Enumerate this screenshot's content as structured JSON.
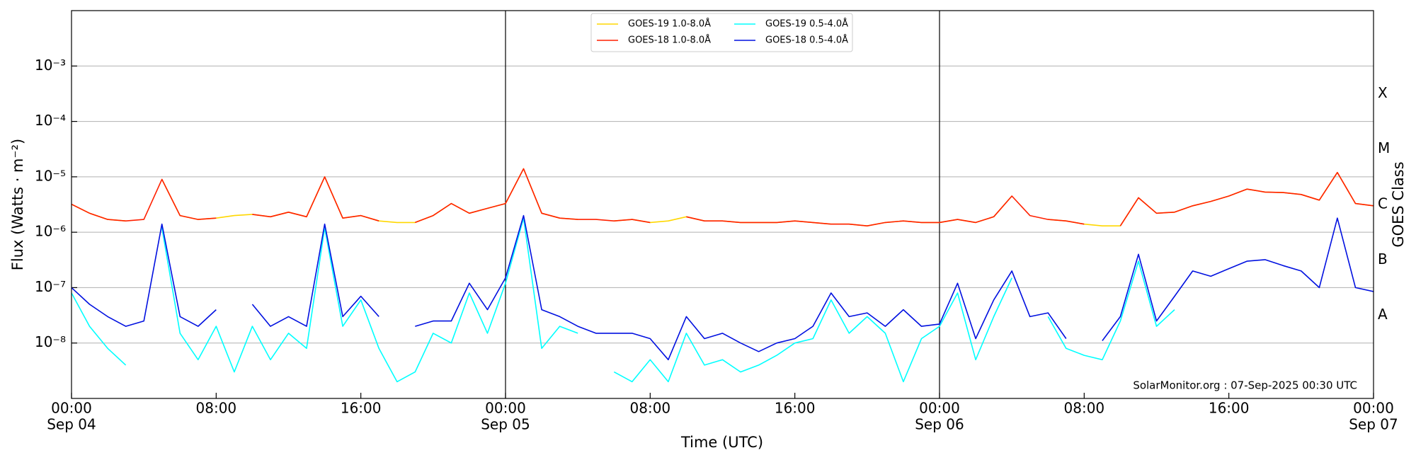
{
  "chart_data": {
    "type": "line",
    "y_label": "Flux (Watts · m⁻²)",
    "x_label": "Time (UTC)",
    "y2_label": "GOES Class",
    "annotation": "SolarMonitor.org : 07-Sep-2025 00:30 UTC",
    "log_scale": true,
    "grid": true,
    "legend": "upper center",
    "ylim": [
      1e-09,
      0.01
    ],
    "yticks": [
      {
        "value": 1e-08,
        "label": "10⁻⁸"
      },
      {
        "value": 1e-07,
        "label": "10⁻⁷"
      },
      {
        "value": 1e-06,
        "label": "10⁻⁶"
      },
      {
        "value": 1e-05,
        "label": "10⁻⁵"
      },
      {
        "value": 0.0001,
        "label": "10⁻⁴"
      },
      {
        "value": 0.001,
        "label": "10⁻³"
      }
    ],
    "class_ticks": [
      {
        "value": 1e-08,
        "label": "A"
      },
      {
        "value": 1e-07,
        "label": "B"
      },
      {
        "value": 1e-06,
        "label": "C"
      },
      {
        "value": 1e-05,
        "label": "M"
      },
      {
        "value": 0.0001,
        "label": "X"
      }
    ],
    "xlim": [
      "Sep 04 00:00",
      "Sep 07 00:00"
    ],
    "xticks": [
      {
        "value": "Sep 04 00:00",
        "label": [
          "00:00",
          "Sep 04"
        ]
      },
      {
        "value": "Sep 04 08:00",
        "label": "08:00"
      },
      {
        "value": "Sep 04 16:00",
        "label": "16:00"
      },
      {
        "value": "Sep 05 00:00",
        "label": [
          "00:00",
          "Sep 05"
        ]
      },
      {
        "value": "Sep 05 08:00",
        "label": "08:00"
      },
      {
        "value": "Sep 05 16:00",
        "label": "16:00"
      },
      {
        "value": "Sep 06 00:00",
        "label": [
          "00:00",
          "Sep 06"
        ]
      },
      {
        "value": "Sep 06 08:00",
        "label": "08:00"
      },
      {
        "value": "Sep 06 16:00",
        "label": "16:00"
      },
      {
        "value": "Sep 07 00:00",
        "label": [
          "00:00",
          "Sep 07"
        ]
      }
    ],
    "x": [
      "Sep 04 00:00",
      "Sep 04 01:00",
      "Sep 04 02:00",
      "Sep 04 03:00",
      "Sep 04 04:00",
      "Sep 04 05:00",
      "Sep 04 06:00",
      "Sep 04 07:00",
      "Sep 04 08:00",
      "Sep 04 09:00",
      "Sep 04 10:00",
      "Sep 04 11:00",
      "Sep 04 12:00",
      "Sep 04 13:00",
      "Sep 04 14:00",
      "Sep 04 15:00",
      "Sep 04 16:00",
      "Sep 04 17:00",
      "Sep 04 18:00",
      "Sep 04 19:00",
      "Sep 04 20:00",
      "Sep 04 21:00",
      "Sep 04 22:00",
      "Sep 04 23:00",
      "Sep 05 00:00",
      "Sep 05 01:00",
      "Sep 05 02:00",
      "Sep 05 03:00",
      "Sep 05 04:00",
      "Sep 05 05:00",
      "Sep 05 06:00",
      "Sep 05 07:00",
      "Sep 05 08:00",
      "Sep 05 09:00",
      "Sep 05 10:00",
      "Sep 05 11:00",
      "Sep 05 12:00",
      "Sep 05 13:00",
      "Sep 05 14:00",
      "Sep 05 15:00",
      "Sep 05 16:00",
      "Sep 05 17:00",
      "Sep 05 18:00",
      "Sep 05 19:00",
      "Sep 05 20:00",
      "Sep 05 21:00",
      "Sep 05 22:00",
      "Sep 05 23:00",
      "Sep 06 00:00",
      "Sep 06 01:00",
      "Sep 06 02:00",
      "Sep 06 03:00",
      "Sep 06 04:00",
      "Sep 06 05:00",
      "Sep 06 06:00",
      "Sep 06 07:00",
      "Sep 06 08:00",
      "Sep 06 09:00",
      "Sep 06 10:00",
      "Sep 06 11:00",
      "Sep 06 12:00",
      "Sep 06 13:00",
      "Sep 06 14:00",
      "Sep 06 15:00",
      "Sep 06 16:00",
      "Sep 06 17:00",
      "Sep 06 18:00",
      "Sep 06 19:00",
      "Sep 06 20:00",
      "Sep 06 21:00",
      "Sep 06 22:00",
      "Sep 06 23:00",
      "Sep 07 00:00"
    ],
    "series": [
      {
        "name": "GOES-19 1.0-8.0Å",
        "color": "#ffd700",
        "values": [
          3.2e-06,
          2.2e-06,
          1.7e-06,
          1.6e-06,
          null,
          9e-06,
          2e-06,
          1.7e-06,
          1.8e-06,
          2e-06,
          2.1e-06,
          1.9e-06,
          2.3e-06,
          1.9e-06,
          1e-05,
          1.8e-06,
          2e-06,
          1.6e-06,
          1.5e-06,
          1.5e-06,
          2e-06,
          3.3e-06,
          2.2e-06,
          2.7e-06,
          3.3e-06,
          1.4e-05,
          2.2e-06,
          1.8e-06,
          1.7e-06,
          null,
          1.6e-06,
          1.7e-06,
          1.5e-06,
          1.6e-06,
          1.9e-06,
          1.6e-06,
          1.6e-06,
          1.5e-06,
          1.5e-06,
          1.5e-06,
          1.6e-06,
          1.5e-06,
          1.4e-06,
          1.4e-06,
          1.3e-06,
          1.5e-06,
          1.6e-06,
          1.5e-06,
          1.5e-06,
          1.7e-06,
          1.5e-06,
          1.9e-06,
          4.5e-06,
          null,
          1.7e-06,
          1.6e-06,
          1.4e-06,
          1.3e-06,
          1.3e-06,
          4.2e-06,
          2.2e-06,
          2.3e-06,
          3e-06,
          3.6e-06,
          4.5e-06,
          6e-06,
          5.3e-06,
          5.2e-06,
          4.8e-06,
          3.8e-06,
          1.2e-05,
          3.3e-06,
          3e-06
        ]
      },
      {
        "name": "GOES-18 1.0-8.0Å",
        "color": "#ff2000",
        "values": [
          3.2e-06,
          2.2e-06,
          1.7e-06,
          1.6e-06,
          1.7e-06,
          9e-06,
          2e-06,
          1.7e-06,
          1.8e-06,
          null,
          2.1e-06,
          1.9e-06,
          2.3e-06,
          1.9e-06,
          1e-05,
          1.8e-06,
          2e-06,
          1.6e-06,
          null,
          1.5e-06,
          2e-06,
          3.3e-06,
          2.2e-06,
          2.7e-06,
          3.3e-06,
          1.4e-05,
          2.2e-06,
          1.8e-06,
          1.7e-06,
          1.7e-06,
          1.6e-06,
          1.7e-06,
          1.5e-06,
          null,
          1.9e-06,
          1.6e-06,
          1.6e-06,
          1.5e-06,
          1.5e-06,
          1.5e-06,
          1.6e-06,
          1.5e-06,
          1.4e-06,
          1.4e-06,
          1.3e-06,
          1.5e-06,
          1.6e-06,
          1.5e-06,
          1.5e-06,
          1.7e-06,
          1.5e-06,
          1.9e-06,
          4.5e-06,
          2e-06,
          1.7e-06,
          1.6e-06,
          1.4e-06,
          null,
          1.3e-06,
          4.2e-06,
          2.2e-06,
          2.3e-06,
          3e-06,
          3.6e-06,
          4.5e-06,
          6e-06,
          5.3e-06,
          5.2e-06,
          4.8e-06,
          3.8e-06,
          1.2e-05,
          3.3e-06,
          3e-06
        ]
      },
      {
        "name": "GOES-19 0.5-4.0Å",
        "color": "#00ffff",
        "values": [
          8e-08,
          2e-08,
          8e-09,
          4e-09,
          null,
          1.2e-06,
          1.5e-08,
          5e-09,
          2e-08,
          3e-09,
          2e-08,
          5e-09,
          1.5e-08,
          8e-09,
          1.2e-06,
          2e-08,
          6e-08,
          8e-09,
          2e-09,
          3e-09,
          1.5e-08,
          1e-08,
          8e-08,
          1.5e-08,
          1.2e-07,
          1.8e-06,
          8e-09,
          2e-08,
          1.5e-08,
          null,
          3e-09,
          2e-09,
          5e-09,
          2e-09,
          1.5e-08,
          4e-09,
          5e-09,
          3e-09,
          4e-09,
          6e-09,
          1e-08,
          1.2e-08,
          6e-08,
          1.5e-08,
          3e-08,
          1.5e-08,
          2e-09,
          1.2e-08,
          2e-08,
          8e-08,
          5e-09,
          3e-08,
          1.5e-07,
          null,
          3e-08,
          8e-09,
          6e-09,
          5e-09,
          2.5e-08,
          3e-07,
          2e-08,
          4e-08,
          null,
          null,
          null,
          null,
          null,
          null,
          null,
          null,
          null,
          null,
          null
        ]
      },
      {
        "name": "GOES-18 0.5-4.0Å",
        "color": "#0010e0",
        "values": [
          1e-07,
          5e-08,
          3e-08,
          2e-08,
          2.5e-08,
          1.4e-06,
          3e-08,
          2e-08,
          4e-08,
          null,
          5e-08,
          2e-08,
          3e-08,
          2e-08,
          1.4e-06,
          3e-08,
          7e-08,
          3e-08,
          null,
          2e-08,
          2.5e-08,
          2.5e-08,
          1.2e-07,
          4e-08,
          1.5e-07,
          2e-06,
          4e-08,
          3e-08,
          2e-08,
          1.5e-08,
          1.5e-08,
          1.5e-08,
          1.2e-08,
          5e-09,
          3e-08,
          1.2e-08,
          1.5e-08,
          1e-08,
          7e-09,
          1e-08,
          1.2e-08,
          2e-08,
          8e-08,
          3e-08,
          3.5e-08,
          2e-08,
          4e-08,
          2e-08,
          2.2e-08,
          1.2e-07,
          1.2e-08,
          6e-08,
          2e-07,
          3e-08,
          3.5e-08,
          1.2e-08,
          null,
          1.1e-08,
          3e-08,
          4e-07,
          2.5e-08,
          7e-08,
          2e-07,
          1.6e-07,
          2.2e-07,
          3e-07,
          3.2e-07,
          2.5e-07,
          2e-07,
          1e-07,
          1.8e-06,
          1e-07,
          8.5e-08
        ]
      }
    ]
  }
}
